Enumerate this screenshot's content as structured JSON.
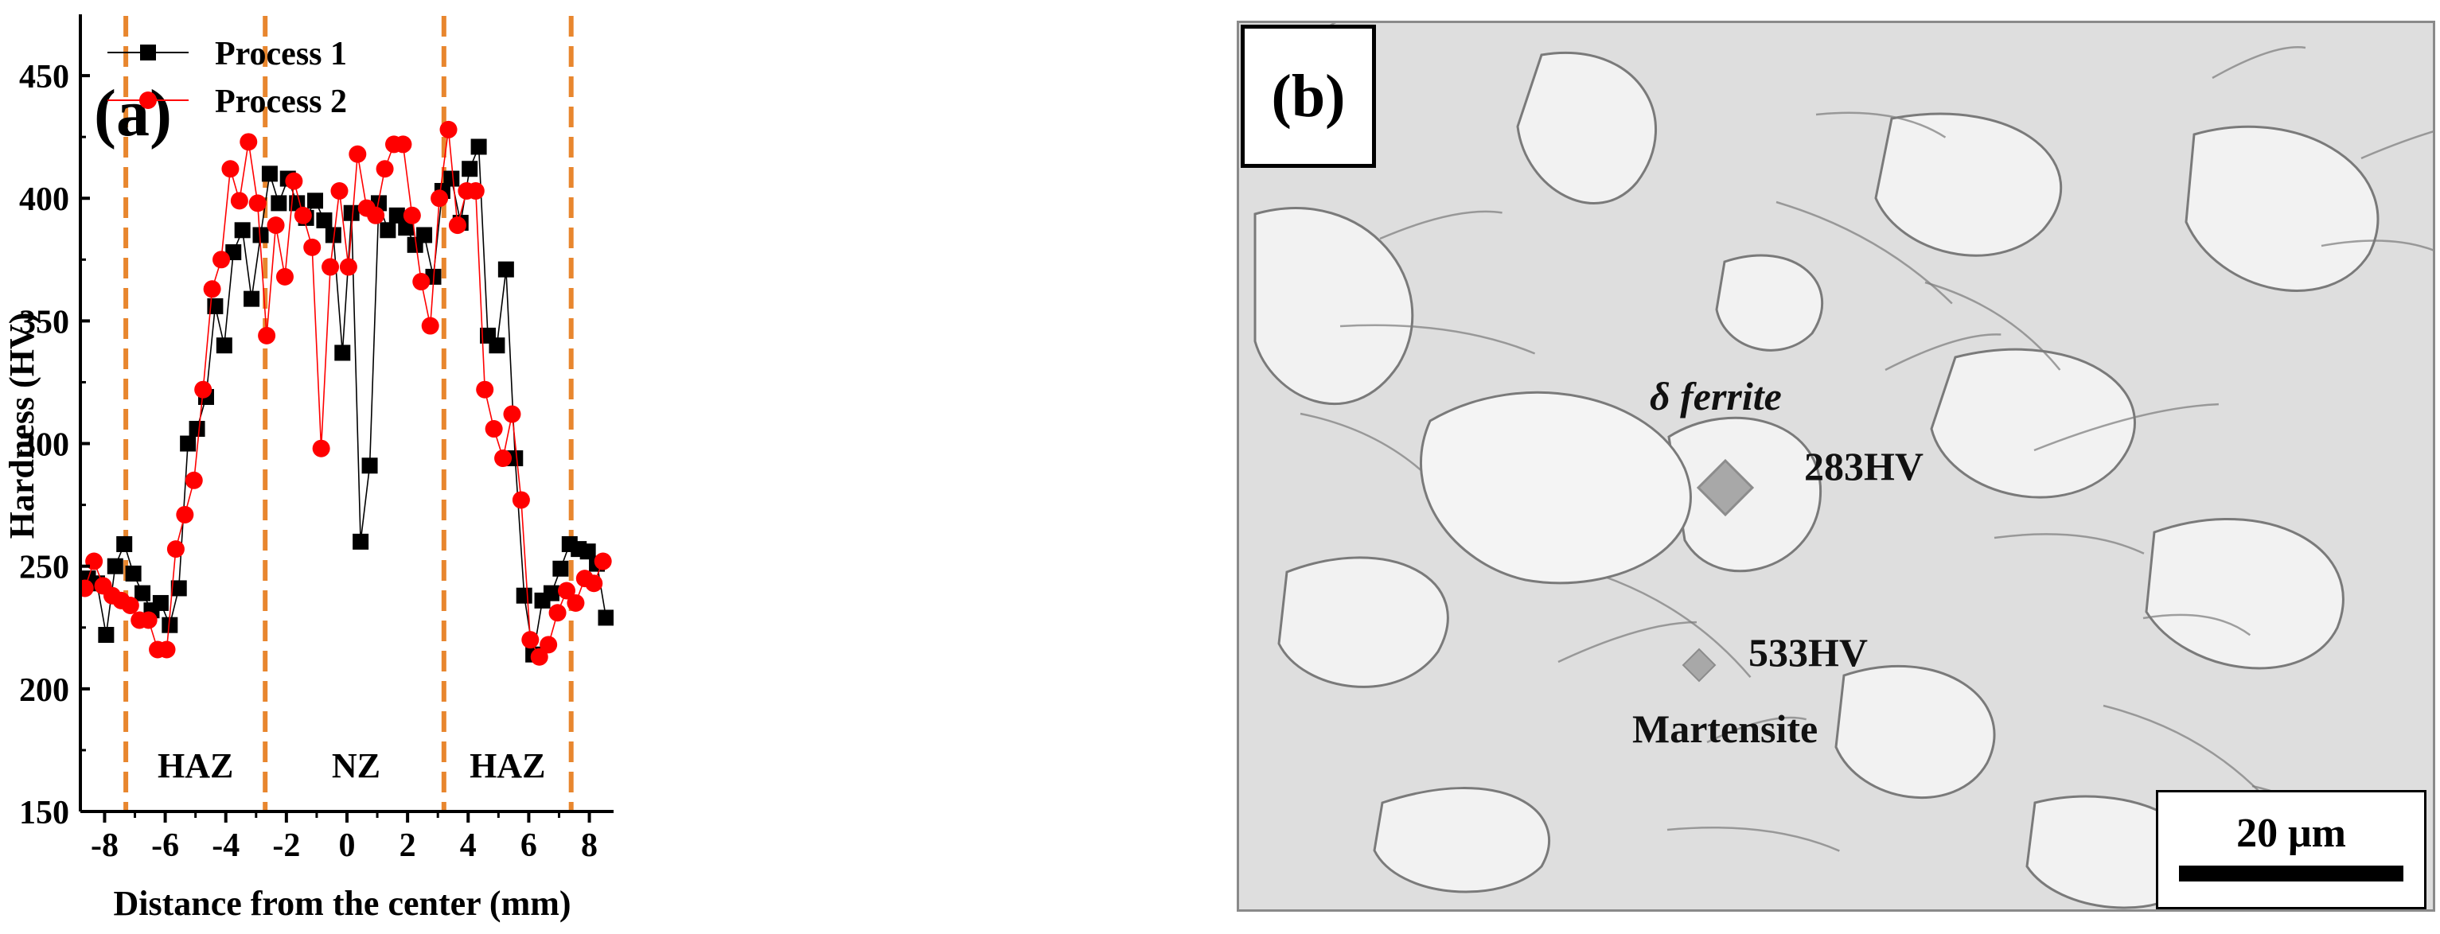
{
  "chart_data": {
    "type": "line",
    "panel_label": "(a)",
    "xlabel": "Distance from the center (mm)",
    "ylabel": "Hardness (HV)",
    "xlim": [
      -8.8,
      8.8
    ],
    "ylim": [
      150,
      475
    ],
    "xticks": [
      -8,
      -6,
      -4,
      -2,
      0,
      2,
      4,
      6,
      8
    ],
    "yticks": [
      150,
      200,
      250,
      300,
      350,
      400,
      450
    ],
    "legend_position": "top-right",
    "zone_boundaries": [
      -7.3,
      -2.7,
      3.2,
      7.4
    ],
    "zones": [
      {
        "label": "HAZ",
        "x": -5.0
      },
      {
        "label": "NZ",
        "x": 0.3
      },
      {
        "label": "HAZ",
        "x": 5.3
      }
    ],
    "series": [
      {
        "name": "Process 1",
        "color": "#000000",
        "marker": "square",
        "x": [
          -8.55,
          -8.25,
          -7.95,
          -7.65,
          -7.35,
          -7.05,
          -6.75,
          -6.45,
          -6.15,
          -5.85,
          -5.55,
          -5.25,
          -4.95,
          -4.65,
          -4.35,
          -4.05,
          -3.75,
          -3.45,
          -3.15,
          -2.85,
          -2.55,
          -2.25,
          -1.95,
          -1.65,
          -1.35,
          -1.05,
          -0.75,
          -0.45,
          -0.15,
          0.15,
          0.45,
          0.75,
          1.05,
          1.35,
          1.65,
          1.95,
          2.25,
          2.55,
          2.85,
          3.15,
          3.45,
          3.75,
          4.05,
          4.35,
          4.65,
          4.95,
          5.25,
          5.55,
          5.85,
          6.15,
          6.45,
          6.75,
          7.05,
          7.35,
          7.65,
          7.95,
          8.25,
          8.55
        ],
        "values": [
          245,
          243,
          222,
          250,
          259,
          247,
          239,
          232,
          235,
          226,
          241,
          300,
          306,
          319,
          356,
          340,
          378,
          387,
          359,
          385,
          410,
          398,
          408,
          398,
          392,
          399,
          391,
          385,
          337,
          394,
          260,
          291,
          398,
          387,
          393,
          388,
          381,
          385,
          368,
          403,
          408,
          390,
          412,
          421,
          344,
          340,
          371,
          294,
          238,
          214,
          236,
          239,
          249,
          259,
          257,
          256,
          251,
          229
        ]
      },
      {
        "name": "Process 2",
        "color": "#ff0000",
        "marker": "circle",
        "x": [
          -8.65,
          -8.35,
          -8.05,
          -7.75,
          -7.45,
          -7.15,
          -6.85,
          -6.55,
          -6.25,
          -5.95,
          -5.65,
          -5.35,
          -5.05,
          -4.75,
          -4.45,
          -4.15,
          -3.85,
          -3.55,
          -3.25,
          -2.95,
          -2.65,
          -2.35,
          -2.05,
          -1.75,
          -1.45,
          -1.15,
          -0.85,
          -0.55,
          -0.25,
          0.05,
          0.35,
          0.65,
          0.95,
          1.25,
          1.55,
          1.85,
          2.15,
          2.45,
          2.75,
          3.05,
          3.35,
          3.65,
          3.95,
          4.25,
          4.55,
          4.85,
          5.15,
          5.45,
          5.75,
          6.05,
          6.35,
          6.65,
          6.95,
          7.25,
          7.55,
          7.85,
          8.15,
          8.45
        ],
        "values": [
          241,
          252,
          242,
          238,
          236,
          234,
          228,
          228,
          216,
          216,
          257,
          271,
          285,
          322,
          363,
          375,
          412,
          399,
          423,
          398,
          344,
          389,
          368,
          407,
          393,
          380,
          298,
          372,
          403,
          372,
          418,
          396,
          393,
          412,
          422,
          422,
          393,
          366,
          348,
          400,
          428,
          389,
          403,
          403,
          322,
          306,
          294,
          312,
          277,
          220,
          213,
          218,
          231,
          240,
          235,
          245,
          243,
          252
        ]
      }
    ]
  },
  "micrograph": {
    "panel_label": "(b)",
    "phase_top": "δ ferrite",
    "hardness_top": "283HV",
    "hardness_bottom": "533HV",
    "phase_bottom": "Martensite",
    "scale_bar": "20 μm",
    "colors": {
      "background": "#dedede",
      "light": "#f2f2f2",
      "boundary": "#7a7a7a",
      "indent": "#a8a8a8"
    }
  },
  "theme": {
    "zone_line_color": "#e8862e",
    "axis_color": "#000000"
  }
}
